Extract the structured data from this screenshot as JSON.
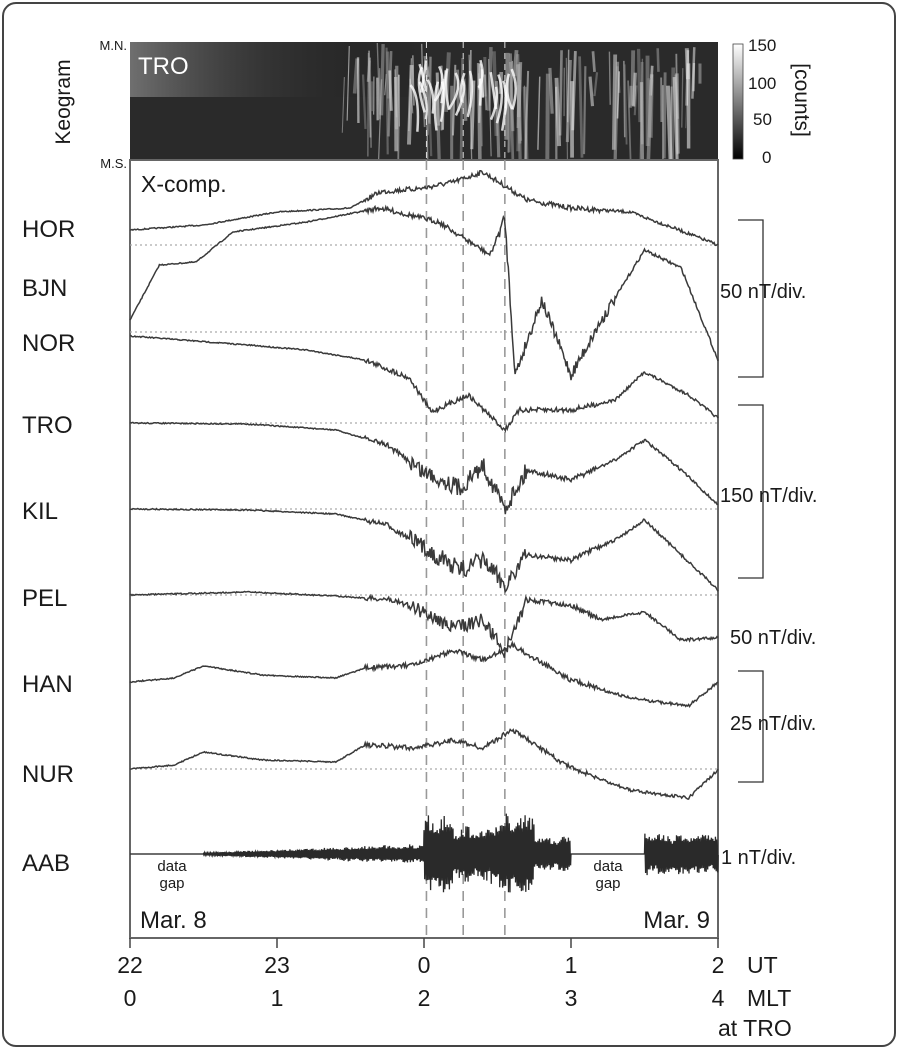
{
  "chart_data": {
    "type": "line",
    "panel_label": "X-comp.",
    "keogram": {
      "axis_label": "Keogram",
      "station": "TRO",
      "top_label": "M.N.",
      "bottom_label": "M.S.",
      "colorbar_unit": "[counts]",
      "colorbar_ticks": [
        "150",
        "100",
        "50",
        "0"
      ],
      "colorbar_range": [
        0,
        150
      ]
    },
    "x_axis": {
      "ut_ticks": [
        "22",
        "23",
        "0",
        "1",
        "2"
      ],
      "ut_label": "UT",
      "mlt_ticks": [
        "0",
        "1",
        "2",
        "3",
        "4"
      ],
      "mlt_label": "MLT",
      "mlt_sublabel": "at TRO",
      "range_hours_from_22UT": [
        0,
        4
      ]
    },
    "date_labels": {
      "start": "Mar. 8",
      "end": "Mar. 9"
    },
    "marker_times_UT": [
      "00:01",
      "00:16",
      "00:33"
    ],
    "stations": [
      {
        "name": "HOR"
      },
      {
        "name": "BJN"
      },
      {
        "name": "NOR"
      },
      {
        "name": "TRO"
      },
      {
        "name": "KIL"
      },
      {
        "name": "PEL"
      },
      {
        "name": "HAN"
      },
      {
        "name": "NUR"
      },
      {
        "name": "AAB"
      }
    ],
    "scales": [
      {
        "label": "50 nT/div.",
        "stations": [
          "HOR",
          "BJN",
          "NOR"
        ]
      },
      {
        "label": "150 nT/div.",
        "stations": [
          "TRO",
          "KIL"
        ]
      },
      {
        "label": "50 nT/div.",
        "stations": [
          "PEL"
        ]
      },
      {
        "label": "25 nT/div.",
        "stations": [
          "HAN",
          "NUR"
        ]
      },
      {
        "label": "1 nT/div.",
        "stations": [
          "AAB"
        ]
      }
    ],
    "gaps": [
      {
        "label_line1": "data",
        "label_line2": "gap",
        "range_hours_from_22UT": [
          0,
          0.5
        ]
      },
      {
        "label_line1": "data",
        "label_line2": "gap",
        "range_hours_from_22UT": [
          3.0,
          3.5
        ]
      }
    ]
  }
}
